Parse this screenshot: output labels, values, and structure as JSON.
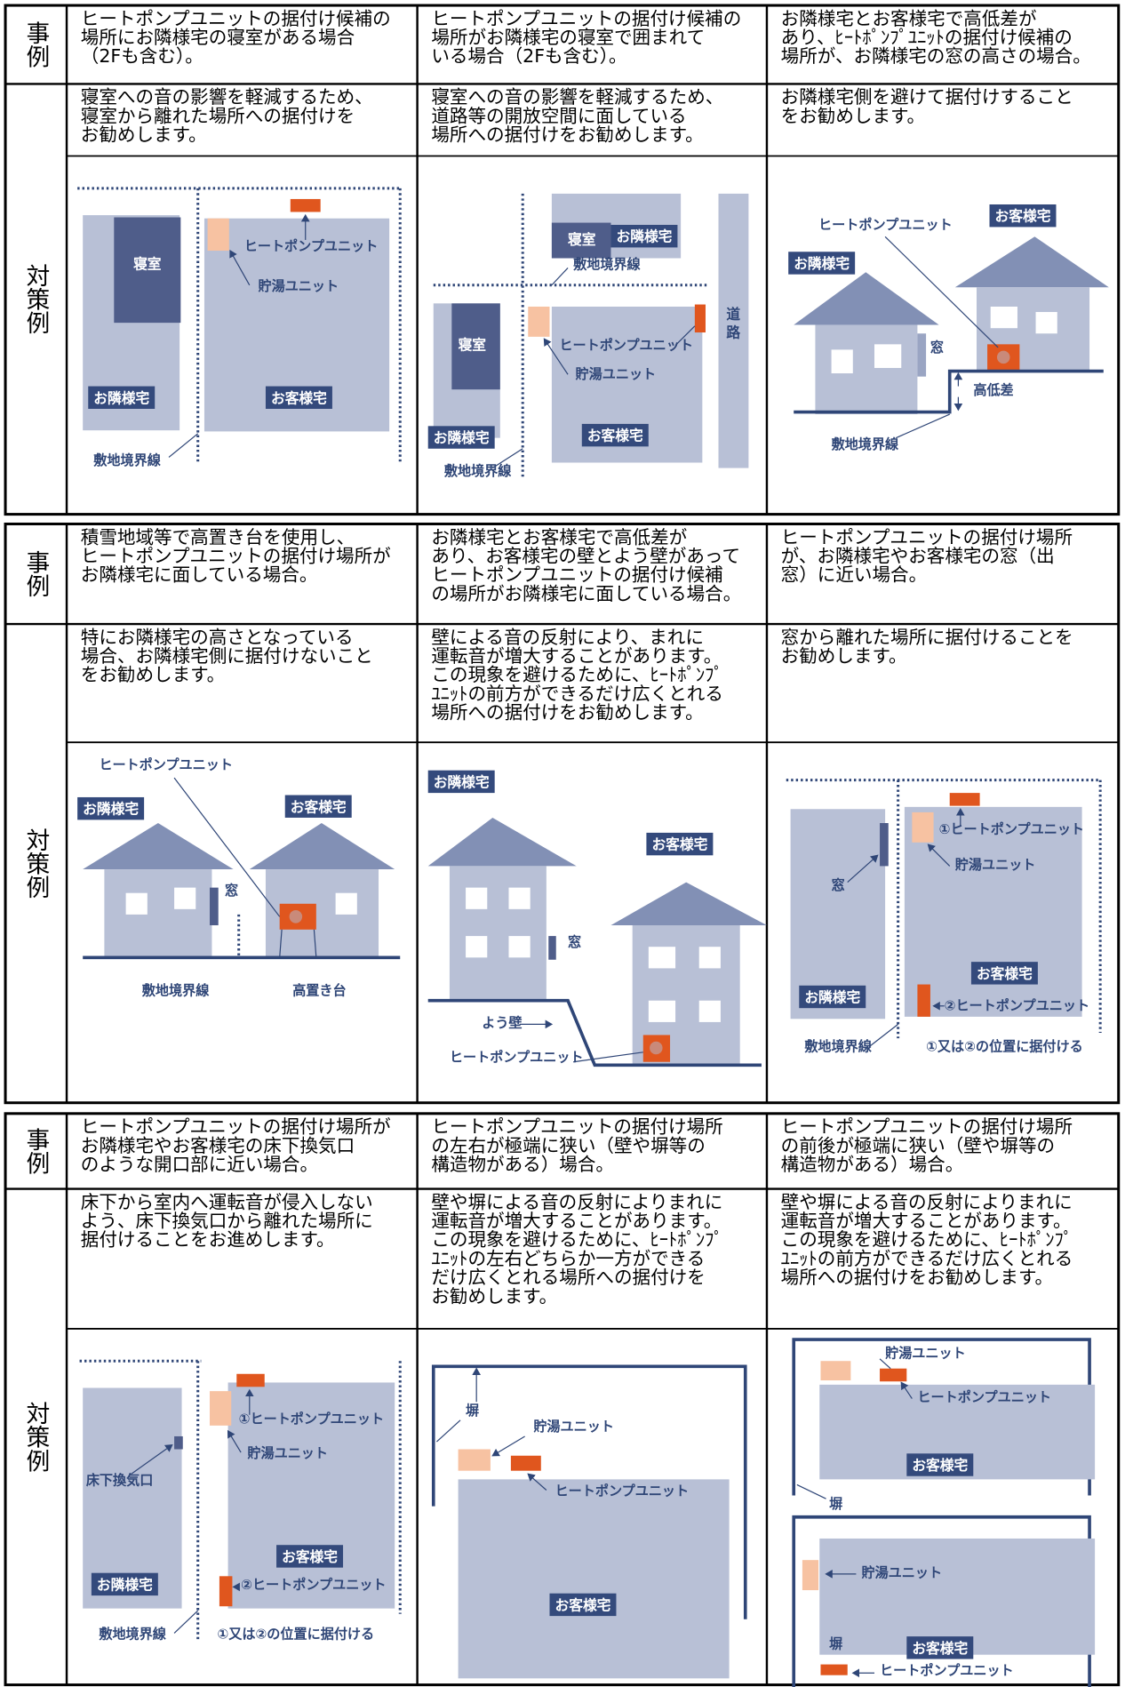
{
  "sections": [
    {
      "case_heading": "事例",
      "measure_heading": "対策例",
      "columns": [
        {
          "case": [
            "ヒートポンプユニットの据付け候補の",
            "場所にお隣様宅の寝室がある場合",
            "（2Fも含む）。"
          ],
          "measure": [
            "寝室への音の影響を軽減するため、",
            "寝室から離れた場所への据付けを",
            "お勧めします。"
          ],
          "diagram": [
            "寝室",
            "ヒートポンプユニット",
            "貯湯ユニット",
            "お隣様宅",
            "お客様宅",
            "敷地境界線"
          ]
        },
        {
          "case": [
            "ヒートポンプユニットの据付け候補の",
            "場所がお隣様宅の寝室で囲まれて",
            "いる場合（2Fも含む）。"
          ],
          "measure": [
            "寝室への音の影響を軽減するため、",
            "道路等の開放空間に面している",
            "場所への据付けをお勧めします。"
          ],
          "diagram": [
            "お隣様宅",
            "寝室",
            "敷地境界線",
            "寝室",
            "ヒートポンプユニット",
            "貯湯ユニット",
            "道路",
            "お隣様宅",
            "お客様宅",
            "敷地境界線"
          ]
        },
        {
          "case": [
            "お隣様宅とお客様宅で高低差が",
            "あり、ﾋｰﾄﾎﾟﾝﾌﾟﾕﾆｯﾄの据付け候補の",
            "場所が、お隣様宅の窓の高さの場合。"
          ],
          "measure": [
            "お隣様宅側を避けて据付けすること",
            "をお勧めします。"
          ],
          "diagram": [
            "ヒートポンプユニット",
            "お客様宅",
            "お隣様宅",
            "窓",
            "高低差",
            "敷地境界線"
          ]
        }
      ]
    },
    {
      "case_heading": "事例",
      "measure_heading": "対策例",
      "columns": [
        {
          "case": [
            "積雪地域等で高置き台を使用し、",
            "ヒートポンプユニットの据付け場所が",
            "お隣様宅に面している場合。"
          ],
          "measure": [
            "特にお隣様宅の高さとなっている",
            "場合、お隣様宅側に据付けないこと",
            "をお勧めします。"
          ],
          "diagram": [
            "ヒートポンプユニット",
            "お隣様宅",
            "お客様宅",
            "窓",
            "敷地境界線",
            "高置き台"
          ]
        },
        {
          "case": [
            "お隣様宅とお客様宅で高低差が",
            "あり、お客様宅の壁とよう壁があって",
            "ヒートポンプユニットの据付け候補",
            "の場所がお隣様宅に面している場合。"
          ],
          "measure": [
            "壁による音の反射により、まれに",
            "運転音が増大することがあります。",
            "この現象を避けるために、ﾋｰﾄﾎﾟﾝﾌﾟ",
            "ﾕﾆｯﾄの前方ができるだけ広くとれる",
            "場所への据付けをお勧めします。"
          ],
          "diagram": [
            "お隣様宅",
            "お客様宅",
            "窓",
            "よう壁",
            "ヒートポンプユニット"
          ]
        },
        {
          "case": [
            "ヒートポンプユニットの据付け場所",
            "が、お隣様宅やお客様宅の窓（出",
            "窓）に近い場合。"
          ],
          "measure": [
            "窓から離れた場所に据付けることを",
            "お勧めします。"
          ],
          "diagram": [
            "①ヒートポンプユニット",
            "窓",
            "貯湯ユニット",
            "お客様宅",
            "お隣様宅",
            "②ヒートポンプユニット",
            "敷地境界線",
            "①又は②の位置に据付ける"
          ]
        }
      ]
    },
    {
      "case_heading": "事例",
      "measure_heading": "対策例",
      "columns": [
        {
          "case": [
            "ヒートポンプユニットの据付け場所が",
            "お隣様宅やお客様宅の床下換気口",
            "のような開口部に近い場合。"
          ],
          "measure": [
            "床下から室内へ運転音が侵入しない",
            "よう、床下換気口から離れた場所に",
            "据付けることをお進めします。"
          ],
          "diagram": [
            "①ヒートポンプユニット",
            "貯湯ユニット",
            "床下換気口",
            "お客様宅",
            "お隣様宅",
            "②ヒートポンプユニット",
            "敷地境界線",
            "①又は②の位置に据付ける"
          ]
        },
        {
          "case": [
            "ヒートポンプユニットの据付け場所",
            "の左右が極端に狭い（壁や塀等の",
            "構造物がある）場合。"
          ],
          "measure": [
            "壁や塀による音の反射によりまれに",
            "運転音が増大することがあります。",
            "この現象を避けるために、ﾋｰﾄﾎﾟﾝﾌﾟ",
            "ﾕﾆｯﾄの左右どちらか一方ができる",
            "だけ広くとれる場所への据付けを",
            "お勧めします。"
          ],
          "diagram": [
            "塀",
            "貯湯ユニット",
            "ヒートポンプユニット",
            "お客様宅"
          ]
        },
        {
          "case": [
            "ヒートポンプユニットの据付け場所",
            "の前後が極端に狭い（壁や塀等の",
            "構造物がある）場合。"
          ],
          "measure": [
            "壁や塀による音の反射によりまれに",
            "運転音が増大することがあります。",
            "この現象を避けるために、ﾋｰﾄﾎﾟﾝﾌﾟ",
            "ﾕﾆｯﾄの前方ができるだけ広くとれる",
            "場所への据付けをお勧めします。"
          ],
          "diagram": [
            "貯湯ユニット",
            "ヒートポンプユニット",
            "お客様宅",
            "塀",
            "貯湯ユニット",
            "塀",
            "お客様宅",
            "ヒートポンプユニット"
          ]
        }
      ]
    }
  ]
}
